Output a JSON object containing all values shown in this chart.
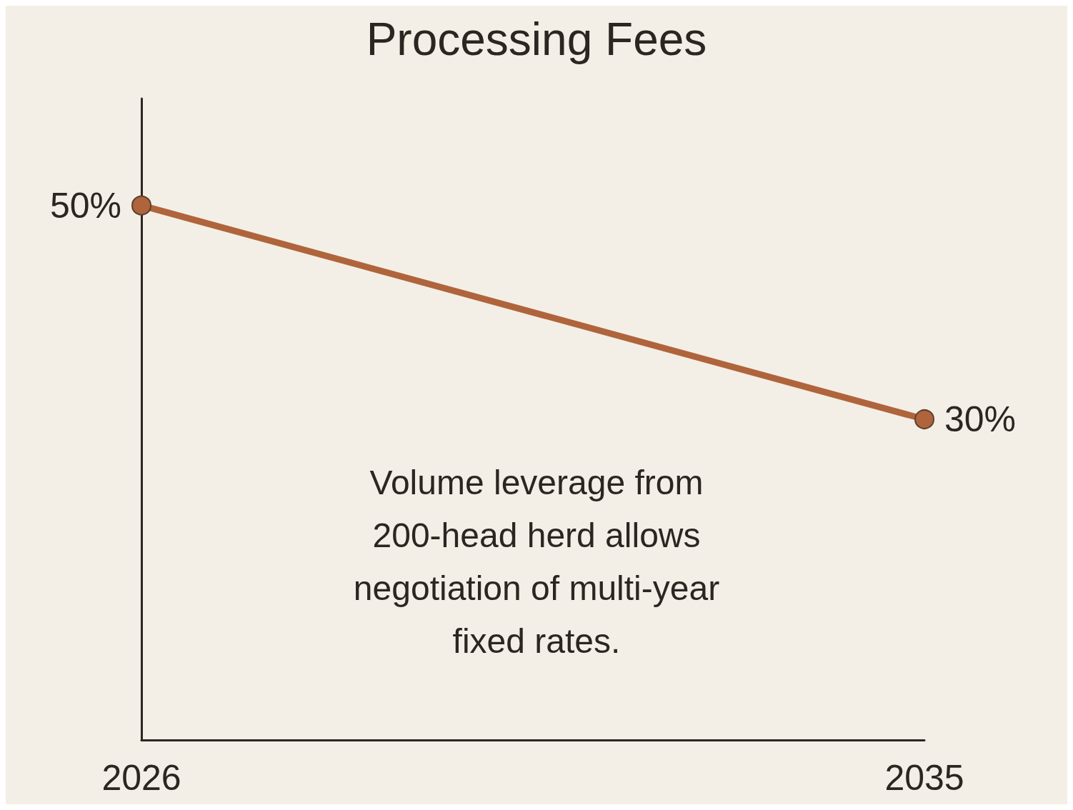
{
  "chart_data": {
    "type": "line",
    "title": "Processing Fees",
    "categories": [
      "2026",
      "2035"
    ],
    "series": [
      {
        "color": "#b0643c",
        "values": [
          50,
          30
        ],
        "value_labels": [
          "50%",
          "30%"
        ]
      }
    ],
    "marker": "circle",
    "line_style": "solid",
    "annotations": [
      "Volume leverage from\n200-head herd allows\nnegotiation of multi-year\nfixed rates."
    ]
  }
}
